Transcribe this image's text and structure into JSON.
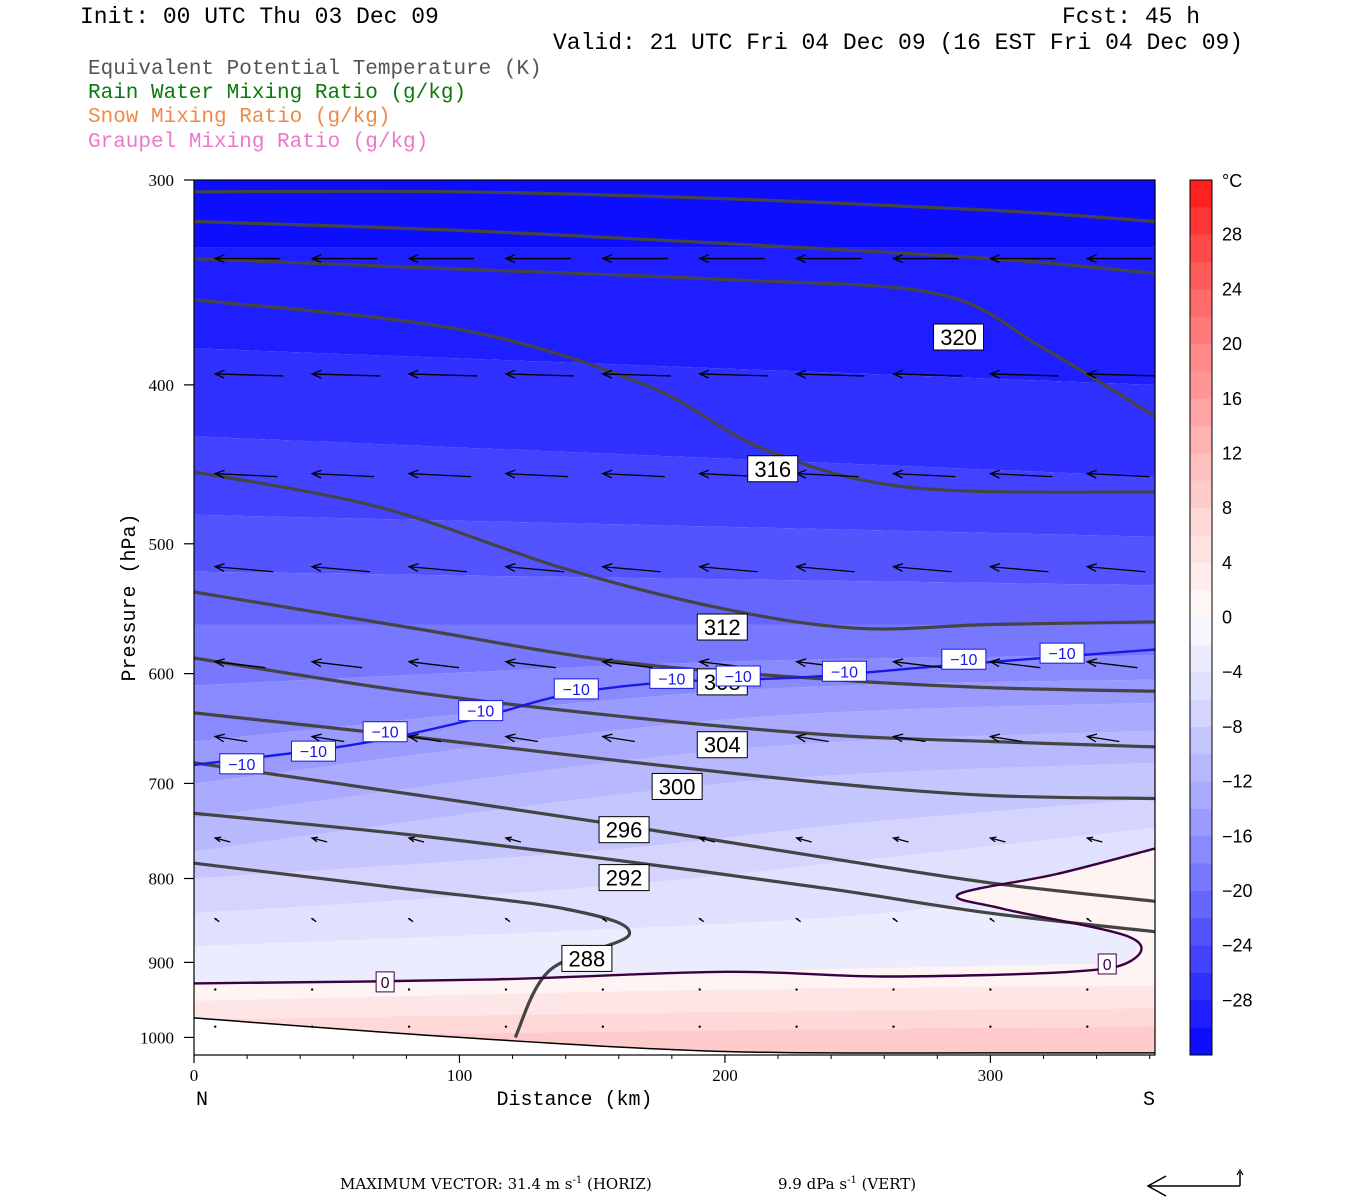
{
  "header": {
    "init": "Init: 00 UTC Thu 03 Dec 09",
    "fcst": "Fcst:   45 h",
    "valid": "Valid: 21 UTC Fri 04 Dec 09 (16 EST Fri 04 Dec 09)"
  },
  "legend": [
    {
      "label": "Equivalent Potential Temperature (K)",
      "color": "#555555"
    },
    {
      "label": "Rain Water Mixing Ratio (g/kg)",
      "color": "#0a7a0a"
    },
    {
      "label": "Snow Mixing Ratio (g/kg)",
      "color": "#f08a4b"
    },
    {
      "label": "Graupel Mixing Ratio (g/kg)",
      "color": "#ee77cc"
    }
  ],
  "footer": {
    "max_vector_prefix": "MAXIMUM VECTOR:  31.4 m s",
    "max_vector_suffix": " (HORIZ)",
    "vert_prefix": "9.9 dPa s",
    "vert_suffix": " (VERT)",
    "exponent": "-1"
  },
  "chart_data": {
    "type": "contour",
    "xlabel": "Distance (km)",
    "ylabel": "Pressure (hPa)",
    "xlim": [
      0,
      362
    ],
    "ylim": [
      1025,
      300
    ],
    "y_log_scale": true,
    "xticks": [
      0,
      100,
      200,
      300
    ],
    "yticks": [
      300,
      400,
      500,
      600,
      700,
      800,
      900,
      1000
    ],
    "x_end_labels": {
      "left": "N",
      "right": "S"
    },
    "colorbar": {
      "unit": "°C",
      "labels": [
        28,
        24,
        20,
        16,
        12,
        8,
        4,
        0,
        -4,
        -8,
        -12,
        -16,
        -20,
        -24,
        -28
      ],
      "levels": [
        32,
        30,
        28,
        26,
        24,
        22,
        20,
        18,
        16,
        14,
        12,
        10,
        8,
        6,
        4,
        2,
        0,
        -2,
        -4,
        -6,
        -8,
        -10,
        -12,
        -14,
        -16,
        -18,
        -20,
        -22,
        -24,
        -26,
        -28,
        -30,
        -32
      ],
      "colors": [
        "#ff2020",
        "#ff3535",
        "#ff4848",
        "#ff5a5a",
        "#ff6a6a",
        "#ff7a7a",
        "#ff8888",
        "#ff9696",
        "#ffa4a4",
        "#ffb2b2",
        "#ffc0c0",
        "#ffcccc",
        "#ffd8d8",
        "#ffe2e2",
        "#ffecec",
        "#fff6f6",
        "#f6f6ff",
        "#ececff",
        "#e0e0ff",
        "#d4d4ff",
        "#c6c6ff",
        "#b8b8ff",
        "#aaaaff",
        "#9a9aff",
        "#8a8aff",
        "#7878ff",
        "#6666ff",
        "#5454ff",
        "#4242ff",
        "#3030ff",
        "#1e1eff",
        "#0e0eff"
      ]
    },
    "theta_e_contours": [
      {
        "value": 288,
        "label": "288",
        "points": [
          [
            121,
            1000
          ],
          [
            134,
            910
          ],
          [
            164,
            865
          ],
          [
            140,
            835
          ],
          [
            75,
            810
          ],
          [
            0,
            783
          ]
        ]
      },
      {
        "value": 292,
        "label": "292",
        "points": [
          [
            0,
            730
          ],
          [
            80,
            752
          ],
          [
            160,
            780
          ],
          [
            240,
            812
          ],
          [
            300,
            840
          ],
          [
            362,
            862
          ]
        ]
      },
      {
        "value": 296,
        "label": "296",
        "points": [
          [
            0,
            680
          ],
          [
            80,
            710
          ],
          [
            160,
            742
          ],
          [
            240,
            778
          ],
          [
            300,
            805
          ],
          [
            362,
            826
          ]
        ]
      },
      {
        "value": 300,
        "label": "300",
        "points": [
          [
            0,
            634
          ],
          [
            80,
            655
          ],
          [
            160,
            678
          ],
          [
            240,
            700
          ],
          [
            300,
            712
          ],
          [
            362,
            715
          ]
        ]
      },
      {
        "value": 304,
        "label": "304",
        "points": [
          [
            0,
            587
          ],
          [
            80,
            615
          ],
          [
            160,
            637
          ],
          [
            240,
            654
          ],
          [
            300,
            660
          ],
          [
            362,
            665
          ]
        ]
      },
      {
        "value": 308,
        "label": "308",
        "points": [
          [
            0,
            535
          ],
          [
            80,
            562
          ],
          [
            160,
            590
          ],
          [
            240,
            605
          ],
          [
            300,
            612
          ],
          [
            362,
            615
          ]
        ]
      },
      {
        "value": 312,
        "label": "312",
        "points": [
          [
            0,
            452
          ],
          [
            70,
            475
          ],
          [
            140,
            518
          ],
          [
            200,
            548
          ],
          [
            250,
            563
          ],
          [
            300,
            560
          ],
          [
            362,
            558
          ]
        ]
      },
      {
        "value": 316,
        "label": "316",
        "points": [
          [
            0,
            355
          ],
          [
            100,
            370
          ],
          [
            170,
            400
          ],
          [
            215,
            438
          ],
          [
            270,
            462
          ],
          [
            362,
            465
          ]
        ]
      },
      {
        "value": 320,
        "label": "320",
        "points": [
          [
            0,
            335
          ],
          [
            100,
            340
          ],
          [
            200,
            345
          ],
          [
            280,
            352
          ],
          [
            320,
            380
          ],
          [
            362,
            418
          ]
        ]
      },
      {
        "value": 324,
        "label": "",
        "points": [
          [
            0,
            318
          ],
          [
            100,
            322
          ],
          [
            200,
            328
          ],
          [
            300,
            335
          ],
          [
            362,
            342
          ]
        ]
      },
      {
        "value": 328,
        "label": "",
        "points": [
          [
            0,
            305
          ],
          [
            100,
            305
          ],
          [
            200,
            308
          ],
          [
            300,
            313
          ],
          [
            362,
            318
          ]
        ]
      }
    ],
    "isotherms": [
      {
        "value": -10,
        "label": "−10",
        "color": "#1818e8",
        "points": [
          [
            0,
            682
          ],
          [
            60,
            663
          ],
          [
            105,
            640
          ],
          [
            140,
            618
          ],
          [
            180,
            607
          ],
          [
            230,
            603
          ],
          [
            290,
            592
          ],
          [
            362,
            580
          ]
        ]
      },
      {
        "value": 0,
        "label": "0",
        "color": "#3a0040",
        "points": [
          [
            0,
            927
          ],
          [
            110,
            922
          ],
          [
            200,
            912
          ],
          [
            260,
            918
          ],
          [
            330,
            912
          ],
          [
            353,
            898
          ],
          [
            352,
            868
          ],
          [
            305,
            835
          ],
          [
            288,
            818
          ],
          [
            325,
            795
          ],
          [
            362,
            767
          ]
        ]
      }
    ],
    "terrain_pressure": [
      [
        0,
        973
      ],
      [
        100,
        1000
      ],
      [
        200,
        1020
      ],
      [
        300,
        1022
      ],
      [
        362,
        1022
      ]
    ]
  }
}
